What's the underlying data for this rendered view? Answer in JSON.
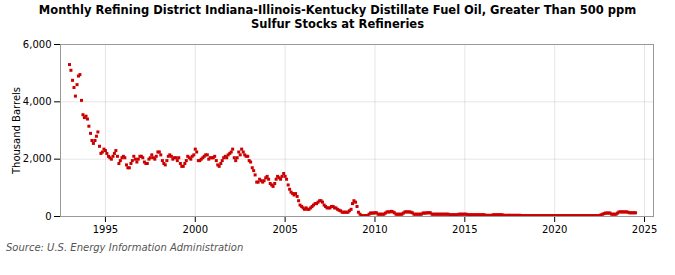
{
  "chart_data": {
    "type": "scatter",
    "title": "Monthly Refining District Indiana-Illinois-Kentucky Distillate Fuel Oil, Greater Than 500 ppm\nSulfur Stocks at Refineries",
    "ylabel": "Thousand Barrels",
    "source": "Source: U.S. Energy Information Administration",
    "color": "#cc0000",
    "marker": "square",
    "grid": true,
    "xlim": [
      1992.5,
      2025.5
    ],
    "xticks": [
      1995,
      2000,
      2005,
      2010,
      2015,
      2020,
      2025
    ],
    "ylim": [
      0,
      6000
    ],
    "yticks": [
      0,
      {
        "value": 2000,
        "label": "2,000"
      },
      {
        "value": 4000,
        "label": "4,000"
      },
      {
        "value": 6000,
        "label": "6,000"
      }
    ],
    "x": [
      1993.0,
      1993.08,
      1993.17,
      1993.25,
      1993.33,
      1993.42,
      1993.5,
      1993.58,
      1993.67,
      1993.75,
      1993.83,
      1993.92,
      1994.0,
      1994.08,
      1994.17,
      1994.25,
      1994.33,
      1994.42,
      1994.5,
      1994.58,
      1994.67,
      1994.75,
      1994.83,
      1994.92,
      1995.0,
      1995.08,
      1995.17,
      1995.25,
      1995.33,
      1995.42,
      1995.5,
      1995.58,
      1995.67,
      1995.75,
      1995.83,
      1995.92,
      1996.0,
      1996.08,
      1996.17,
      1996.25,
      1996.33,
      1996.42,
      1996.5,
      1996.58,
      1996.67,
      1996.75,
      1996.83,
      1996.92,
      1997.0,
      1997.08,
      1997.17,
      1997.25,
      1997.33,
      1997.42,
      1997.5,
      1997.58,
      1997.67,
      1997.75,
      1997.83,
      1997.92,
      1998.0,
      1998.08,
      1998.17,
      1998.25,
      1998.33,
      1998.42,
      1998.5,
      1998.58,
      1998.67,
      1998.75,
      1998.83,
      1998.92,
      1999.0,
      1999.08,
      1999.17,
      1999.25,
      1999.33,
      1999.42,
      1999.5,
      1999.58,
      1999.67,
      1999.75,
      1999.83,
      1999.92,
      2000.0,
      2000.08,
      2000.17,
      2000.25,
      2000.33,
      2000.42,
      2000.5,
      2000.58,
      2000.67,
      2000.75,
      2000.83,
      2000.92,
      2001.0,
      2001.08,
      2001.17,
      2001.25,
      2001.33,
      2001.42,
      2001.5,
      2001.58,
      2001.67,
      2001.75,
      2001.83,
      2001.92,
      2002.0,
      2002.08,
      2002.17,
      2002.25,
      2002.33,
      2002.42,
      2002.5,
      2002.58,
      2002.67,
      2002.75,
      2002.83,
      2002.92,
      2003.0,
      2003.08,
      2003.17,
      2003.25,
      2003.33,
      2003.42,
      2003.5,
      2003.58,
      2003.67,
      2003.75,
      2003.83,
      2003.92,
      2004.0,
      2004.08,
      2004.17,
      2004.25,
      2004.33,
      2004.42,
      2004.5,
      2004.58,
      2004.67,
      2004.75,
      2004.83,
      2004.92,
      2005.0,
      2005.08,
      2005.17,
      2005.25,
      2005.33,
      2005.42,
      2005.5,
      2005.58,
      2005.67,
      2005.75,
      2005.83,
      2005.92,
      2006.0,
      2006.08,
      2006.17,
      2006.25,
      2006.33,
      2006.42,
      2006.5,
      2006.58,
      2006.67,
      2006.75,
      2006.83,
      2006.92,
      2007.0,
      2007.08,
      2007.17,
      2007.25,
      2007.33,
      2007.42,
      2007.5,
      2007.58,
      2007.67,
      2007.75,
      2007.83,
      2007.92,
      2008.0,
      2008.08,
      2008.17,
      2008.25,
      2008.33,
      2008.42,
      2008.5,
      2008.58,
      2008.67,
      2008.75,
      2008.83,
      2008.92,
      2009.0,
      2009.08,
      2009.17,
      2009.25,
      2009.33,
      2009.42,
      2009.5,
      2009.58,
      2009.67,
      2009.75,
      2009.83,
      2009.92,
      2010.0,
      2010.08,
      2010.17,
      2010.25,
      2010.33,
      2010.42,
      2010.5,
      2010.58,
      2010.67,
      2010.75,
      2010.83,
      2010.92,
      2011.0,
      2011.08,
      2011.17,
      2011.25,
      2011.33,
      2011.42,
      2011.5,
      2011.58,
      2011.67,
      2011.75,
      2011.83,
      2011.92,
      2012.0,
      2012.08,
      2012.17,
      2012.25,
      2012.33,
      2012.42,
      2012.5,
      2012.58,
      2012.67,
      2012.75,
      2012.83,
      2012.92,
      2013.0,
      2013.08,
      2013.17,
      2013.25,
      2013.33,
      2013.42,
      2013.5,
      2013.58,
      2013.67,
      2013.75,
      2013.83,
      2013.92,
      2014.0,
      2014.08,
      2014.17,
      2014.25,
      2014.33,
      2014.42,
      2014.5,
      2014.58,
      2014.67,
      2014.75,
      2014.83,
      2014.92,
      2015.0,
      2015.08,
      2015.17,
      2015.25,
      2015.33,
      2015.42,
      2015.5,
      2015.58,
      2015.67,
      2015.75,
      2015.83,
      2015.92,
      2016.0,
      2016.08,
      2016.17,
      2016.25,
      2016.33,
      2016.42,
      2016.5,
      2016.58,
      2016.67,
      2016.75,
      2016.83,
      2016.92,
      2017.0,
      2017.08,
      2017.17,
      2017.25,
      2017.33,
      2017.42,
      2017.5,
      2017.58,
      2017.67,
      2017.75,
      2017.83,
      2017.92,
      2018.0,
      2018.08,
      2018.17,
      2018.25,
      2018.33,
      2018.42,
      2018.5,
      2018.58,
      2018.67,
      2018.75,
      2018.83,
      2018.92,
      2019.0,
      2019.08,
      2019.17,
      2019.25,
      2019.33,
      2019.42,
      2019.5,
      2019.58,
      2019.67,
      2019.75,
      2019.83,
      2019.92,
      2020.0,
      2020.08,
      2020.17,
      2020.25,
      2020.33,
      2020.42,
      2020.5,
      2020.58,
      2020.67,
      2020.75,
      2020.83,
      2020.92,
      2021.0,
      2021.08,
      2021.17,
      2021.25,
      2021.33,
      2021.42,
      2021.5,
      2021.58,
      2021.67,
      2021.75,
      2021.83,
      2021.92,
      2022.0,
      2022.08,
      2022.17,
      2022.25,
      2022.33,
      2022.42,
      2022.5,
      2022.58,
      2022.67,
      2022.75,
      2022.83,
      2022.92,
      2023.0,
      2023.08,
      2023.17,
      2023.25,
      2023.33,
      2023.42,
      2023.5,
      2023.58,
      2023.67,
      2023.75,
      2023.83,
      2023.92,
      2024.0,
      2024.08,
      2024.17,
      2024.25,
      2024.33,
      2024.42,
      2024.5
    ],
    "values": [
      5300,
      5100,
      4750,
      4500,
      4200,
      4600,
      4900,
      4950,
      4050,
      3550,
      3450,
      3500,
      3400,
      3150,
      2900,
      2650,
      2550,
      2650,
      2800,
      2950,
      2450,
      2200,
      2250,
      2350,
      2300,
      2200,
      2100,
      2050,
      2000,
      2100,
      2200,
      2300,
      2100,
      1850,
      1950,
      2050,
      2100,
      2050,
      1800,
      1700,
      1700,
      1850,
      1950,
      2100,
      2000,
      1900,
      2000,
      2100,
      2100,
      2050,
      1900,
      1850,
      1850,
      2000,
      2050,
      2150,
      2050,
      2000,
      2100,
      2250,
      2250,
      2150,
      1950,
      1850,
      1800,
      1950,
      2100,
      2150,
      2100,
      2000,
      2050,
      2050,
      1950,
      2050,
      1850,
      1750,
      1750,
      1850,
      1950,
      2100,
      2050,
      2000,
      2100,
      2150,
      2350,
      2250,
      1950,
      1950,
      2000,
      2050,
      2100,
      2150,
      2150,
      2000,
      2050,
      2050,
      2050,
      2100,
      1950,
      1800,
      1750,
      1850,
      1950,
      2050,
      2100,
      2050,
      2150,
      2200,
      2250,
      2350,
      2050,
      1950,
      2050,
      2250,
      2150,
      2350,
      2250,
      2150,
      2100,
      2100,
      1950,
      1900,
      1700,
      1600,
      1450,
      1200,
      1200,
      1300,
      1250,
      1200,
      1250,
      1350,
      1400,
      1300,
      1150,
      1100,
      1050,
      1150,
      1300,
      1400,
      1350,
      1300,
      1400,
      1500,
      1400,
      1300,
      1100,
      950,
      850,
      800,
      750,
      800,
      700,
      550,
      400,
      350,
      300,
      250,
      300,
      250,
      250,
      300,
      350,
      400,
      450,
      450,
      500,
      550,
      550,
      500,
      400,
      350,
      300,
      300,
      300,
      350,
      350,
      300,
      300,
      250,
      220,
      200,
      150,
      150,
      150,
      150,
      150,
      200,
      250,
      450,
      550,
      500,
      350,
      150,
      80,
      30,
      30,
      30,
      30,
      30,
      80,
      120,
      120,
      120,
      130,
      130,
      80,
      80,
      80,
      80,
      80,
      120,
      160,
      160,
      160,
      180,
      160,
      130,
      80,
      80,
      80,
      80,
      80,
      120,
      160,
      160,
      160,
      160,
      150,
      130,
      80,
      80,
      80,
      80,
      80,
      80,
      120,
      120,
      120,
      130,
      130,
      130,
      80,
      80,
      80,
      80,
      80,
      80,
      80,
      80,
      80,
      80,
      80,
      80,
      60,
      60,
      60,
      60,
      60,
      60,
      80,
      80,
      80,
      80,
      80,
      80,
      60,
      60,
      60,
      60,
      60,
      60,
      60,
      60,
      60,
      60,
      60,
      60,
      40,
      40,
      40,
      40,
      40,
      60,
      60,
      60,
      60,
      60,
      60,
      60,
      40,
      40,
      40,
      40,
      40,
      40,
      40,
      40,
      40,
      40,
      40,
      40,
      30,
      30,
      30,
      30,
      30,
      30,
      30,
      30,
      30,
      30,
      30,
      30,
      30,
      30,
      30,
      30,
      30,
      30,
      30,
      30,
      30,
      30,
      30,
      30,
      30,
      30,
      30,
      30,
      30,
      30,
      30,
      30,
      30,
      30,
      30,
      30,
      30,
      30,
      30,
      30,
      30,
      30,
      30,
      30,
      30,
      30,
      30,
      30,
      30,
      30,
      30,
      30,
      30,
      60,
      80,
      100,
      120,
      120,
      120,
      120,
      80,
      80,
      80,
      80,
      120,
      160,
      160,
      160,
      160,
      160,
      160,
      150,
      130,
      130,
      130,
      130,
      130
    ]
  }
}
